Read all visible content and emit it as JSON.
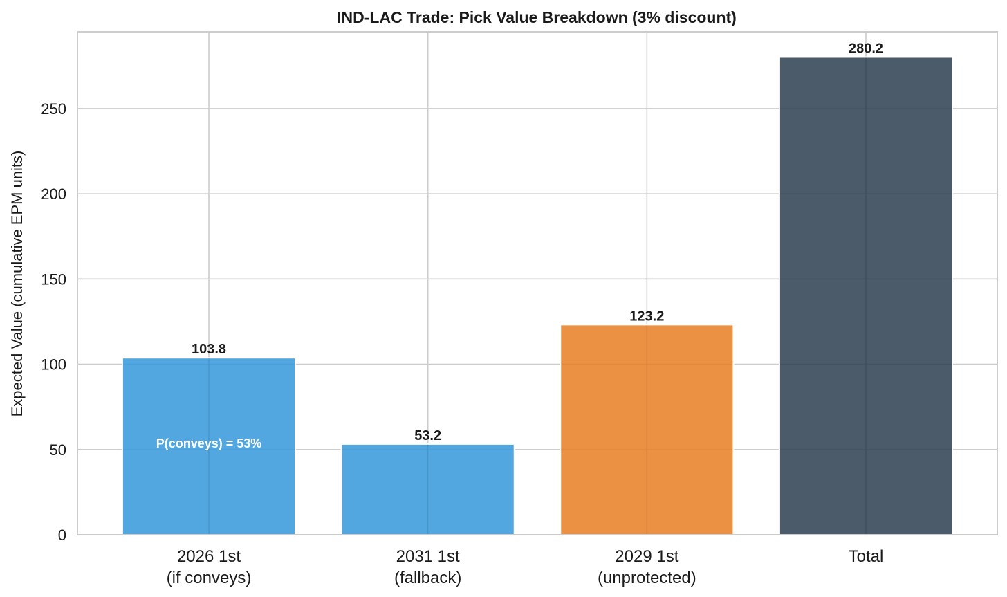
{
  "chart_data": {
    "type": "bar",
    "title": "IND-LAC Trade: Pick Value Breakdown (3% discount)",
    "xlabel": "",
    "ylabel": "Expected Value (cumulative EPM units)",
    "ylim": [
      0,
      295
    ],
    "yticks": [
      0,
      50,
      100,
      150,
      200,
      250
    ],
    "grid": true,
    "legend": "none",
    "categories": [
      [
        "2026 1st",
        "(if conveys)"
      ],
      [
        "2031 1st",
        "(fallback)"
      ],
      [
        "2029 1st",
        "(unprotected)"
      ],
      [
        "Total"
      ]
    ],
    "values": [
      103.8,
      53.2,
      123.2,
      280.2
    ],
    "value_labels": [
      "103.8",
      "53.2",
      "123.2",
      "280.2"
    ],
    "colors": [
      "#3498db",
      "#3498db",
      "#e67e22",
      "#2c3e50"
    ],
    "annotations": [
      {
        "text": "P(conveys) = 53%",
        "bar_index": 0,
        "y": 54
      }
    ]
  }
}
